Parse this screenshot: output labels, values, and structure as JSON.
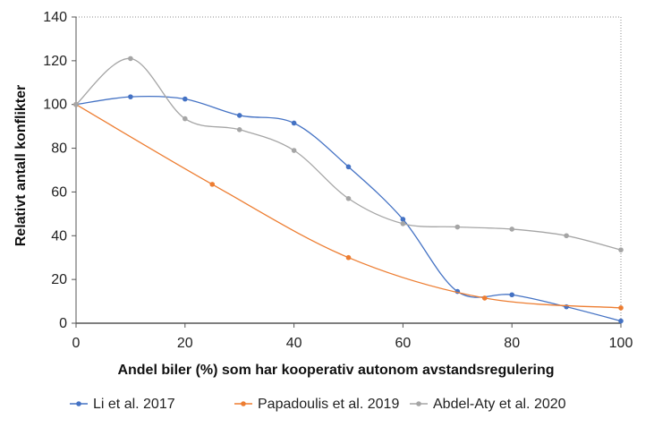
{
  "chart_data": {
    "type": "line",
    "xlabel": "Andel biler (%) som har kooperativ autonom avstandsregulering",
    "ylabel": "Relativt antall konflikter",
    "xlim": [
      0,
      100
    ],
    "ylim": [
      0,
      140
    ],
    "x_ticks": [
      0,
      20,
      40,
      60,
      80,
      100
    ],
    "y_ticks": [
      0,
      20,
      40,
      60,
      80,
      100,
      120,
      140
    ],
    "grid": false,
    "plot_border": "dotted",
    "legend_position": "bottom",
    "series": [
      {
        "name": "Li et al. 2017",
        "color": "#4472C4",
        "x": [
          0,
          10,
          20,
          30,
          40,
          50,
          60,
          70,
          80,
          90,
          100
        ],
        "y": [
          100,
          103.5,
          102.5,
          95,
          91.5,
          71.5,
          47.5,
          14.5,
          13,
          7.5,
          1
        ]
      },
      {
        "name": "Papadoulis et al. 2019",
        "color": "#ED7D31",
        "x": [
          0,
          25,
          50,
          75,
          100
        ],
        "y": [
          100,
          63.5,
          30,
          11.5,
          7
        ]
      },
      {
        "name": "Abdel-Aty et al. 2020",
        "color": "#A5A5A5",
        "x": [
          0,
          10,
          20,
          30,
          40,
          50,
          60,
          70,
          80,
          90,
          100
        ],
        "y": [
          100,
          121,
          93.5,
          88.5,
          79,
          57,
          45.5,
          44,
          43,
          40,
          33.5
        ]
      }
    ]
  }
}
